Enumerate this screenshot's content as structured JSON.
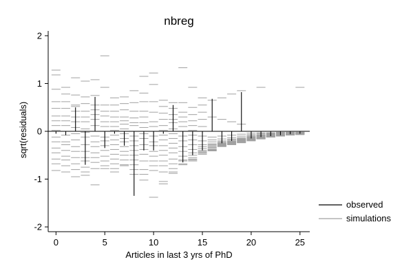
{
  "chart_data": {
    "type": "rootogram-residuals",
    "title": "nbreg",
    "xlabel": "Articles in last 3 yrs of PhD",
    "ylabel": "sqrt(residuals)",
    "xlim": [
      -0.8,
      26
    ],
    "ylim": [
      -2.1,
      2.1
    ],
    "x_ticks": [
      0,
      5,
      10,
      15,
      20,
      25
    ],
    "y_ticks": [
      -2,
      -1,
      0,
      1,
      2
    ],
    "legend": {
      "position": "right",
      "entries": [
        {
          "label": "observed",
          "color": "#000000"
        },
        {
          "label": "simulations",
          "color": "#a0a0a0"
        }
      ]
    },
    "observed": {
      "x": [
        0,
        1,
        2,
        3,
        4,
        5,
        6,
        7,
        8,
        9,
        10,
        11,
        12,
        13,
        14,
        15,
        16,
        17,
        18,
        19,
        20,
        21,
        22,
        23,
        24,
        25
      ],
      "residual": [
        -0.05,
        -0.08,
        0.5,
        -0.7,
        0.72,
        -0.35,
        -0.05,
        -0.3,
        -1.35,
        -0.4,
        -0.4,
        -0.05,
        0.55,
        -0.65,
        -0.5,
        -0.4,
        0.68,
        -0.25,
        -0.2,
        0.82,
        -0.15,
        -0.12,
        -0.1,
        -0.08,
        -0.06,
        -0.05
      ]
    },
    "simulations": {
      "x": [
        0,
        1,
        2,
        3,
        4,
        5,
        6,
        7,
        8,
        9,
        10,
        11,
        12,
        13,
        14,
        15,
        16,
        17,
        18,
        19,
        20,
        21,
        22,
        23,
        24,
        25
      ],
      "values": [
        [
          1.28,
          1.18,
          0.88,
          0.62,
          0.48,
          0.32,
          0.22,
          0.12,
          0.02,
          -0.12,
          -0.22,
          -0.35,
          -0.45,
          -0.58,
          -0.68,
          -0.82
        ],
        [
          0.92,
          0.78,
          0.62,
          0.48,
          0.32,
          0.22,
          0.12,
          0.0,
          -0.08,
          -0.22,
          -0.28,
          -0.4,
          -0.52,
          -0.6,
          -0.72,
          -0.85
        ],
        [
          1.12,
          0.76,
          0.55,
          0.52,
          0.42,
          0.3,
          0.2,
          0.08,
          -0.05,
          -0.18,
          -0.32,
          -0.42,
          -0.55,
          -0.68,
          -0.8,
          -0.95
        ],
        [
          1.05,
          0.72,
          0.58,
          0.42,
          0.3,
          0.2,
          0.05,
          -0.02,
          -0.12,
          -0.28,
          -0.42,
          -0.55,
          -0.62,
          -0.75,
          -0.85,
          -0.92
        ],
        [
          1.08,
          0.75,
          0.55,
          0.45,
          0.35,
          0.25,
          0.12,
          0.0,
          -0.1,
          -0.22,
          -0.32,
          -0.45,
          -0.55,
          -0.65,
          -0.78,
          -1.12
        ],
        [
          1.58,
          0.92,
          0.55,
          0.42,
          0.32,
          0.2,
          0.1,
          0.0,
          -0.12,
          -0.2,
          -0.3,
          -0.4,
          -0.52,
          -0.62,
          -0.72,
          -0.78
        ],
        [
          0.7,
          0.55,
          0.42,
          0.3,
          0.2,
          0.1,
          0.02,
          -0.08,
          -0.18,
          -0.28,
          -0.38,
          -0.48,
          -0.58,
          -0.68,
          -0.78,
          -0.85
        ],
        [
          0.72,
          0.58,
          0.45,
          0.3,
          0.22,
          0.15,
          0.05,
          -0.05,
          -0.15,
          -0.22,
          -0.32,
          -0.42,
          -0.5,
          -0.6,
          -0.7,
          -0.72
        ],
        [
          0.85,
          0.6,
          0.42,
          0.28,
          0.18,
          0.12,
          0.0,
          -0.1,
          -0.2,
          -0.3,
          -0.4,
          -0.5,
          -0.6,
          -0.7,
          -0.8,
          -0.9
        ],
        [
          1.15,
          0.8,
          0.62,
          0.42,
          0.3,
          0.18,
          0.08,
          -0.05,
          -0.15,
          -0.28,
          -0.38,
          -0.48,
          -0.62,
          -0.8,
          -0.9,
          -1.02
        ],
        [
          1.22,
          0.98,
          0.62,
          0.4,
          0.2,
          0.1,
          0.0,
          -0.1,
          -0.22,
          -0.3,
          -0.42,
          -0.52,
          -0.62,
          -0.72,
          -0.82,
          -1.38
        ],
        [
          0.65,
          0.52,
          0.38,
          0.25,
          0.12,
          0.02,
          -0.08,
          -0.18,
          -0.3,
          -0.4,
          -0.5,
          -0.62,
          -0.72,
          -0.85,
          -1.05,
          -1.1
        ],
        [
          0.6,
          0.48,
          0.35,
          0.25,
          0.18,
          0.05,
          -0.05,
          -0.15,
          -0.25,
          -0.35,
          -0.45,
          -0.58,
          -0.68,
          -0.78,
          -0.85,
          -0.88
        ],
        [
          1.33,
          0.6,
          0.4,
          0.3,
          0.2,
          0.1,
          0.0,
          -0.1,
          -0.2,
          -0.32,
          -0.42,
          -0.52,
          -0.6,
          -0.62,
          -0.68,
          -0.7
        ],
        [
          0.92,
          0.5,
          0.35,
          0.22,
          0.12,
          0.02,
          -0.08,
          -0.18,
          -0.28,
          -0.38,
          -0.45,
          -0.5,
          -0.55,
          -0.58,
          -0.6,
          -0.62
        ],
        [
          0.7,
          0.55,
          0.4,
          0.25,
          0.1,
          0.0,
          -0.1,
          -0.2,
          -0.28,
          -0.32,
          -0.36,
          -0.4,
          -0.42,
          -0.44,
          -0.46,
          -0.48
        ],
        [
          0.65,
          0.3,
          0.0,
          -0.12,
          -0.18,
          -0.22,
          -0.26,
          -0.28,
          -0.3,
          -0.32,
          -0.34,
          -0.36,
          -0.38,
          -0.39,
          -0.4,
          -0.41
        ],
        [
          0.7,
          0.25,
          0.0,
          -0.1,
          -0.16,
          -0.2,
          -0.22,
          -0.24,
          -0.25,
          -0.26,
          -0.27,
          -0.28,
          -0.29,
          -0.3,
          -0.31,
          -0.32
        ],
        [
          0.78,
          0.2,
          0.0,
          -0.08,
          -0.13,
          -0.16,
          -0.18,
          -0.2,
          -0.21,
          -0.22,
          -0.23,
          -0.24,
          -0.25,
          -0.26,
          -0.27,
          -0.28
        ],
        [
          0.85,
          0.15,
          0.0,
          -0.06,
          -0.1,
          -0.13,
          -0.15,
          -0.16,
          -0.17,
          -0.18,
          -0.19,
          -0.2,
          -0.21,
          -0.22,
          -0.23,
          -0.24
        ],
        [
          0.0,
          -0.04,
          -0.07,
          -0.09,
          -0.11,
          -0.12,
          -0.13,
          -0.14,
          -0.15,
          -0.16,
          -0.17,
          -0.18,
          -0.18,
          -0.19,
          -0.19,
          -0.2
        ],
        [
          0.92,
          0.0,
          -0.03,
          -0.05,
          -0.07,
          -0.08,
          -0.09,
          -0.1,
          -0.11,
          -0.12,
          -0.13,
          -0.14,
          -0.14,
          -0.15,
          -0.15,
          -0.16
        ],
        [
          0.0,
          -0.03,
          -0.04,
          -0.05,
          -0.06,
          -0.07,
          -0.08,
          -0.08,
          -0.09,
          -0.1,
          -0.1,
          -0.11,
          -0.11,
          -0.12,
          -0.12,
          -0.12
        ],
        [
          0.0,
          -0.02,
          -0.03,
          -0.04,
          -0.05,
          -0.05,
          -0.06,
          -0.06,
          -0.07,
          -0.07,
          -0.08,
          -0.08,
          -0.09,
          -0.09,
          -0.1,
          -0.1
        ],
        [
          0.0,
          -0.02,
          -0.02,
          -0.03,
          -0.03,
          -0.04,
          -0.04,
          -0.05,
          -0.05,
          -0.05,
          -0.06,
          -0.06,
          -0.07,
          -0.07,
          -0.07,
          -0.08
        ],
        [
          0.92,
          0.0,
          -0.02,
          -0.02,
          -0.03,
          -0.03,
          -0.04,
          -0.04,
          -0.04,
          -0.05,
          -0.05,
          -0.05,
          -0.06,
          -0.06,
          -0.06,
          -0.07
        ]
      ]
    }
  }
}
